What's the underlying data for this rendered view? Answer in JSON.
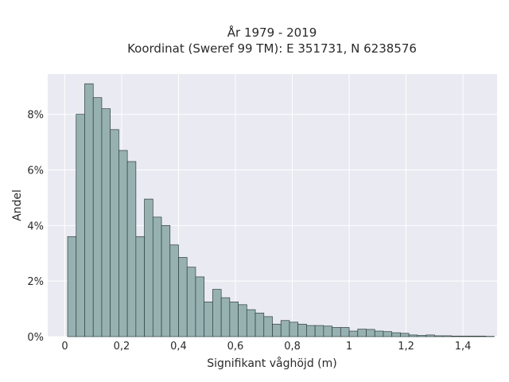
{
  "chart_data": {
    "type": "bar",
    "title": "År 1979 - 2019",
    "subtitle": "Koordinat (Sweref 99 TM): E 351731, N 6238576",
    "xlabel": "Signifikant våghöjd (m)",
    "ylabel": "Andel",
    "xlim": [
      -0.06,
      1.52
    ],
    "ylim": [
      0,
      9.45
    ],
    "x_ticks": [
      0,
      0.2,
      0.4,
      0.6,
      0.8,
      1.0,
      1.2,
      1.4
    ],
    "x_tick_labels": [
      "0",
      "0,2",
      "0,4",
      "0,6",
      "0,8",
      "1",
      "1,2",
      "1,4"
    ],
    "y_ticks": [
      0,
      2,
      4,
      6,
      8
    ],
    "y_tick_labels": [
      "0%",
      "2%",
      "4%",
      "6%",
      "8%"
    ],
    "bin_width": 0.03,
    "bin_start": 0.01,
    "values": [
      3.6,
      8.0,
      9.1,
      8.6,
      8.2,
      7.45,
      6.7,
      6.3,
      3.6,
      4.95,
      4.3,
      4.0,
      3.3,
      2.85,
      2.5,
      2.15,
      1.25,
      1.7,
      1.4,
      1.25,
      1.15,
      0.97,
      0.85,
      0.72,
      0.45,
      0.58,
      0.52,
      0.45,
      0.4,
      0.4,
      0.38,
      0.33,
      0.33,
      0.2,
      0.27,
      0.26,
      0.2,
      0.18,
      0.14,
      0.12,
      0.06,
      0.04,
      0.06,
      0.03,
      0.03,
      0.02,
      0.02,
      0.02,
      0.02,
      0.01
    ],
    "grid": true,
    "colors": {
      "bar_fill": "#97b1b1",
      "bar_stroke": "#2f3f3f",
      "plot_background": "#eaeaf2",
      "grid": "#ffffff"
    }
  }
}
